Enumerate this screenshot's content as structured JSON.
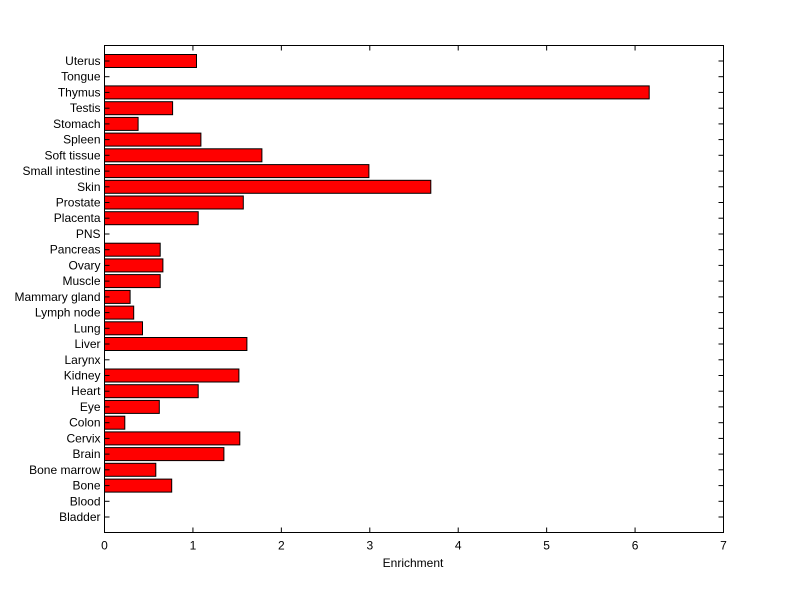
{
  "chart_data": {
    "type": "bar",
    "orientation": "horizontal",
    "title": "",
    "xlabel": "Enrichment",
    "ylabel": "",
    "xlim": [
      0,
      7
    ],
    "xticks": [
      "0",
      "1",
      "2",
      "3",
      "4",
      "5",
      "6",
      "7"
    ],
    "grid": false,
    "bar_color": "#ff0000",
    "categories": [
      "Uterus",
      "Tongue",
      "Thymus",
      "Testis",
      "Stomach",
      "Spleen",
      "Soft tissue",
      "Small intestine",
      "Skin",
      "Prostate",
      "Placenta",
      "PNS",
      "Pancreas",
      "Ovary",
      "Muscle",
      "Mammary gland",
      "Lymph node",
      "Lung",
      "Liver",
      "Larynx",
      "Kidney",
      "Heart",
      "Eye",
      "Colon",
      "Cervix",
      "Brain",
      "Bone marrow",
      "Bone",
      "Blood",
      "Bladder"
    ],
    "values": [
      1.04,
      0,
      6.16,
      0.77,
      0.38,
      1.09,
      1.78,
      2.99,
      3.69,
      1.57,
      1.06,
      0,
      0.63,
      0.66,
      0.63,
      0.29,
      0.33,
      0.43,
      1.61,
      0,
      1.52,
      1.06,
      0.62,
      0.23,
      1.53,
      1.35,
      0.58,
      0.76,
      0,
      0
    ]
  }
}
